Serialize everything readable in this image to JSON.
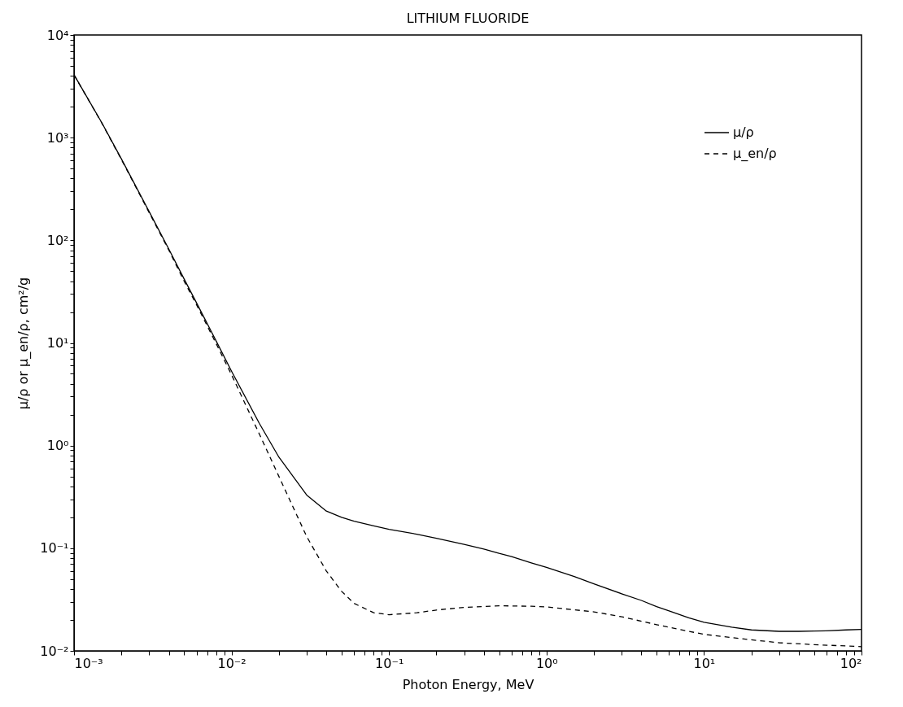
{
  "chart_data": {
    "type": "line",
    "title": "LITHIUM FLUORIDE",
    "xlabel": "Photon Energy, MeV",
    "ylabel": "μ/ρ or μ_en/ρ, cm²/g",
    "log": "xy",
    "grid": false,
    "legend": "top right",
    "marker": "none",
    "xlim": [
      0.001,
      100
    ],
    "ylim": [
      0.01,
      10000
    ],
    "xticks": [
      {
        "value": 0.001,
        "label": "10⁻³"
      },
      {
        "value": 0.002,
        "label": null
      },
      {
        "value": 0.003,
        "label": null
      },
      {
        "value": 0.004,
        "label": null
      },
      {
        "value": 0.005,
        "label": null
      },
      {
        "value": 0.006,
        "label": null
      },
      {
        "value": 0.007,
        "label": null
      },
      {
        "value": 0.008,
        "label": null
      },
      {
        "value": 0.009,
        "label": null
      },
      {
        "value": 0.01,
        "label": "10⁻²"
      },
      {
        "value": 0.02,
        "label": null
      },
      {
        "value": 0.03,
        "label": null
      },
      {
        "value": 0.04,
        "label": null
      },
      {
        "value": 0.05,
        "label": null
      },
      {
        "value": 0.06,
        "label": null
      },
      {
        "value": 0.07,
        "label": null
      },
      {
        "value": 0.08,
        "label": null
      },
      {
        "value": 0.09,
        "label": null
      },
      {
        "value": 0.1,
        "label": "10⁻¹"
      },
      {
        "value": 0.2,
        "label": null
      },
      {
        "value": 0.3,
        "label": null
      },
      {
        "value": 0.4,
        "label": null
      },
      {
        "value": 0.5,
        "label": null
      },
      {
        "value": 0.6,
        "label": null
      },
      {
        "value": 0.7,
        "label": null
      },
      {
        "value": 0.8,
        "label": null
      },
      {
        "value": 0.9,
        "label": null
      },
      {
        "value": 1,
        "label": "10⁰"
      },
      {
        "value": 2,
        "label": null
      },
      {
        "value": 3,
        "label": null
      },
      {
        "value": 4,
        "label": null
      },
      {
        "value": 5,
        "label": null
      },
      {
        "value": 6,
        "label": null
      },
      {
        "value": 7,
        "label": null
      },
      {
        "value": 8,
        "label": null
      },
      {
        "value": 9,
        "label": null
      },
      {
        "value": 10,
        "label": "10¹"
      },
      {
        "value": 20,
        "label": null
      },
      {
        "value": 30,
        "label": null
      },
      {
        "value": 40,
        "label": null
      },
      {
        "value": 50,
        "label": null
      },
      {
        "value": 60,
        "label": null
      },
      {
        "value": 70,
        "label": null
      },
      {
        "value": 80,
        "label": null
      },
      {
        "value": 90,
        "label": null
      },
      {
        "value": 100,
        "label": "10²"
      }
    ],
    "yticks": [
      {
        "value": 0.01,
        "label": "10⁻²"
      },
      {
        "value": 0.02,
        "label": null
      },
      {
        "value": 0.03,
        "label": null
      },
      {
        "value": 0.04,
        "label": null
      },
      {
        "value": 0.05,
        "label": null
      },
      {
        "value": 0.06,
        "label": null
      },
      {
        "value": 0.07,
        "label": null
      },
      {
        "value": 0.08,
        "label": null
      },
      {
        "value": 0.09,
        "label": null
      },
      {
        "value": 0.1,
        "label": "10⁻¹"
      },
      {
        "value": 0.2,
        "label": null
      },
      {
        "value": 0.3,
        "label": null
      },
      {
        "value": 0.4,
        "label": null
      },
      {
        "value": 0.5,
        "label": null
      },
      {
        "value": 0.6,
        "label": null
      },
      {
        "value": 0.7,
        "label": null
      },
      {
        "value": 0.8,
        "label": null
      },
      {
        "value": 0.9,
        "label": null
      },
      {
        "value": 1,
        "label": "10⁰"
      },
      {
        "value": 2,
        "label": null
      },
      {
        "value": 3,
        "label": null
      },
      {
        "value": 4,
        "label": null
      },
      {
        "value": 5,
        "label": null
      },
      {
        "value": 6,
        "label": null
      },
      {
        "value": 7,
        "label": null
      },
      {
        "value": 8,
        "label": null
      },
      {
        "value": 9,
        "label": null
      },
      {
        "value": 10,
        "label": "10¹"
      },
      {
        "value": 20,
        "label": null
      },
      {
        "value": 30,
        "label": null
      },
      {
        "value": 40,
        "label": null
      },
      {
        "value": 50,
        "label": null
      },
      {
        "value": 60,
        "label": null
      },
      {
        "value": 70,
        "label": null
      },
      {
        "value": 80,
        "label": null
      },
      {
        "value": 90,
        "label": null
      },
      {
        "value": 100,
        "label": "10²"
      },
      {
        "value": 200,
        "label": null
      },
      {
        "value": 300,
        "label": null
      },
      {
        "value": 400,
        "label": null
      },
      {
        "value": 500,
        "label": null
      },
      {
        "value": 600,
        "label": null
      },
      {
        "value": 700,
        "label": null
      },
      {
        "value": 800,
        "label": null
      },
      {
        "value": 900,
        "label": null
      },
      {
        "value": 1000,
        "label": "10³"
      },
      {
        "value": 2000,
        "label": null
      },
      {
        "value": 3000,
        "label": null
      },
      {
        "value": 4000,
        "label": null
      },
      {
        "value": 5000,
        "label": null
      },
      {
        "value": 6000,
        "label": null
      },
      {
        "value": 7000,
        "label": null
      },
      {
        "value": 8000,
        "label": null
      },
      {
        "value": 9000,
        "label": null
      },
      {
        "value": 10000,
        "label": "10⁴"
      }
    ],
    "series": [
      {
        "name": "μ/ρ",
        "color": "#000000",
        "line_style": "solid",
        "x": [
          0.001,
          0.0015,
          0.002,
          0.003,
          0.004,
          0.005,
          0.006,
          0.008,
          0.01,
          0.015,
          0.02,
          0.03,
          0.04,
          0.05,
          0.06,
          0.08,
          0.1,
          0.15,
          0.2,
          0.3,
          0.4,
          0.5,
          0.6,
          0.8,
          1,
          1.5,
          2,
          3,
          4,
          5,
          6,
          8,
          10,
          15,
          20,
          30,
          40,
          50,
          60,
          80,
          100
        ],
        "values": [
          4100,
          1400,
          620,
          190,
          82,
          42,
          24.5,
          10.4,
          5.3,
          1.65,
          0.77,
          0.33,
          0.23,
          0.2,
          0.183,
          0.165,
          0.153,
          0.137,
          0.125,
          0.109,
          0.098,
          0.089,
          0.083,
          0.072,
          0.065,
          0.053,
          0.045,
          0.036,
          0.031,
          0.027,
          0.0245,
          0.021,
          0.019,
          0.017,
          0.016,
          0.0155,
          0.0155,
          0.0156,
          0.0157,
          0.016,
          0.0162
        ]
      },
      {
        "name": "μ_en/ρ",
        "color": "#000000",
        "line_style": "dashed",
        "x": [
          0.001,
          0.0015,
          0.002,
          0.003,
          0.004,
          0.005,
          0.006,
          0.008,
          0.01,
          0.015,
          0.02,
          0.03,
          0.04,
          0.05,
          0.06,
          0.08,
          0.1,
          0.15,
          0.2,
          0.3,
          0.5,
          0.8,
          1,
          2,
          3,
          5,
          8,
          10,
          20,
          30,
          50,
          100
        ],
        "values": [
          4080,
          1390,
          610,
          186,
          80,
          40,
          23.5,
          9.8,
          4.9,
          1.3,
          0.5,
          0.13,
          0.06,
          0.038,
          0.029,
          0.0235,
          0.0225,
          0.0235,
          0.025,
          0.0265,
          0.0275,
          0.0272,
          0.0268,
          0.024,
          0.0215,
          0.018,
          0.0155,
          0.0145,
          0.0128,
          0.012,
          0.0115,
          0.011
        ]
      }
    ]
  }
}
